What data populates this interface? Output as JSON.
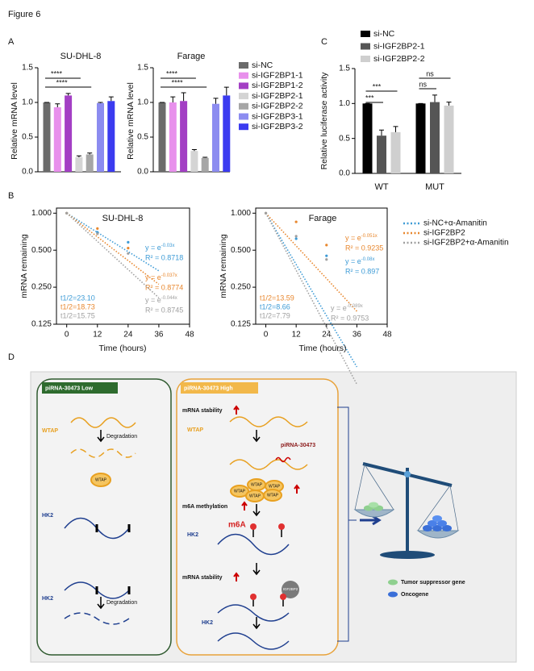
{
  "figure_title": "Figure 6",
  "chart_data": [
    {
      "type": "bar",
      "label": "A",
      "title": "SU-DHL-8",
      "ylabel": "Relative mRNA level",
      "ylim": [
        0,
        1.5
      ],
      "yticks": [
        {
          "value": 0,
          "label": "0.0"
        },
        0.5,
        {
          "value": 1,
          "label": "1.0"
        },
        1.5
      ],
      "categories": [
        null
      ],
      "series": [
        {
          "name": "si-NC",
          "color": "#6b6b6b",
          "values": [
            1.0
          ],
          "errors": [
            0.0
          ]
        },
        {
          "name": "si-IGF2BP1-1",
          "color": "#e890ec",
          "values": [
            0.93
          ],
          "errors": [
            0.05
          ]
        },
        {
          "name": "si-IGF2BP1-2",
          "color": "#a33fc4",
          "values": [
            1.1
          ],
          "errors": [
            0.03
          ]
        },
        {
          "name": "si-IGF2BP2-1",
          "color": "#d4d4d4",
          "values": [
            0.21
          ],
          "errors": [
            0.02
          ]
        },
        {
          "name": "si-IGF2BP2-2",
          "color": "#a6a6a6",
          "values": [
            0.25
          ],
          "errors": [
            0.02
          ]
        },
        {
          "name": "si-IGF2BP3-1",
          "color": "#8c8cf0",
          "values": [
            0.99
          ],
          "errors": [
            0.01
          ]
        },
        {
          "name": "si-IGF2BP3-2",
          "color": "#3b3bf0",
          "values": [
            1.02
          ],
          "errors": [
            0.06
          ]
        }
      ],
      "annotations": [
        "****",
        "****"
      ]
    },
    {
      "type": "bar",
      "title": "Farage",
      "ylabel": "Relative mRNA level",
      "ylim": [
        0,
        1.5
      ],
      "yticks": [
        {
          "value": 0,
          "label": "0.0"
        },
        0.5,
        {
          "value": 1,
          "label": "1.0"
        },
        1.5
      ],
      "categories": [
        null
      ],
      "series": [
        {
          "color": "#6b6b6b",
          "values": [
            1.0
          ],
          "errors": [
            0.0
          ]
        },
        {
          "color": "#e890ec",
          "values": [
            1.0
          ],
          "errors": [
            0.08
          ]
        },
        {
          "color": "#a33fc4",
          "values": [
            1.02
          ],
          "errors": [
            0.12
          ]
        },
        {
          "color": "#d4d4d4",
          "values": [
            0.3
          ],
          "errors": [
            0.02
          ]
        },
        {
          "color": "#a6a6a6",
          "values": [
            0.2
          ],
          "errors": [
            0.01
          ]
        },
        {
          "color": "#8c8cf0",
          "values": [
            0.98
          ],
          "errors": [
            0.08
          ]
        },
        {
          "color": "#3b3bf0",
          "values": [
            1.1
          ],
          "errors": [
            0.12
          ]
        }
      ],
      "annotations": [
        "****",
        "****"
      ]
    },
    {
      "type": "bar",
      "label": "C",
      "ylabel": "Relative luciferase activity",
      "ylim": [
        0,
        1.5
      ],
      "yticks": [
        {
          "value": 0,
          "label": "0.0"
        },
        0.5,
        {
          "value": 1,
          "label": "1.0"
        },
        1.5
      ],
      "categories": [
        "WT",
        "MUT"
      ],
      "series": [
        {
          "name": "si-NC",
          "color": "#000000",
          "values": [
            1.0,
            1.0
          ],
          "errors": [
            0.0,
            0.0
          ]
        },
        {
          "name": "si-IGF2BP2-1",
          "color": "#555555",
          "values": [
            0.54,
            1.02
          ],
          "errors": [
            0.08,
            0.1
          ]
        },
        {
          "name": "si-IGF2BP2-2",
          "color": "#cfcfcf",
          "values": [
            0.59,
            0.97
          ],
          "errors": [
            0.08,
            0.05
          ]
        }
      ],
      "annotations": [
        "***",
        "***",
        "ns",
        "ns"
      ]
    },
    {
      "type": "line",
      "label": "B",
      "title": "SU-DHL-8",
      "xlabel": "Time (hours)",
      "ylabel": "mRNA remaining",
      "yscale": "log",
      "ylim": [
        0.125,
        1.1
      ],
      "yticks": [
        0.125,
        {
          "value": 0.25,
          "label": "0.250"
        },
        {
          "value": 0.5,
          "label": "0.500"
        },
        {
          "value": 1,
          "label": "1.000"
        }
      ],
      "xlim": [
        -4,
        48
      ],
      "xticks": [
        0,
        12,
        24,
        36,
        48
      ],
      "x": [
        0,
        12,
        24
      ],
      "equation_prefix": "y = e",
      "series": [
        {
          "name": "si-NC+α-Amanitin",
          "color": "#3d9bd6",
          "values": [
            1.0,
            0.7,
            0.58
          ],
          "fit": {
            "value": -0.03,
            "label": "-0.03x"
          },
          "r2": "R² = 0.8718",
          "half_life": "t1/2=23.10"
        },
        {
          "name": "si-IGF2BP2",
          "color": "#e8872e",
          "values": [
            1.0,
            0.75,
            0.52
          ],
          "fit": {
            "value": -0.037,
            "label": "-0.037x"
          },
          "r2": "R² = 0.8774",
          "half_life": "t1/2=18.73"
        },
        {
          "name": "si-IGF2BP2+α-Amanitin",
          "color": "#a0a0a0",
          "values": [
            1.0,
            0.68,
            0.47
          ],
          "fit": {
            "value": -0.044,
            "label": "-0.044x"
          },
          "r2": "R² = 0.8745",
          "half_life": "t1/2=15.75"
        }
      ]
    },
    {
      "type": "line",
      "title": "Farage",
      "xlabel": "Time (hours)",
      "ylabel": "mRNA remaining",
      "yscale": "log",
      "ylim": [
        0.125,
        1.1
      ],
      "yticks": [
        0.125,
        {
          "value": 0.25,
          "label": "0.250"
        },
        {
          "value": 0.5,
          "label": "0.500"
        },
        {
          "value": 1,
          "label": "1.000"
        }
      ],
      "xlim": [
        -4,
        48
      ],
      "xticks": [
        0,
        12,
        24,
        36,
        48
      ],
      "x": [
        0,
        12,
        24
      ],
      "equation_prefix": "y = e",
      "series": [
        {
          "color": "#3d9bd6",
          "values": [
            1.0,
            0.62,
            0.45
          ],
          "fit": {
            "value": -0.08,
            "label": "-0.08x"
          },
          "r2": "R² = 0.897",
          "half_life": "t1/2=8.66"
        },
        {
          "color": "#e8872e",
          "values": [
            1.0,
            0.85,
            0.55
          ],
          "fit": {
            "value": -0.051,
            "label": "-0.051x"
          },
          "r2": "R² = 0.9235",
          "half_life": "t1/2=13.59"
        },
        {
          "color": "#a0a0a0",
          "values": [
            1.0,
            0.65,
            0.42
          ],
          "fit": {
            "value": -0.089,
            "label": "-0.089x"
          },
          "r2": "R² = 0.9753",
          "half_life": "t1/2=7.79"
        }
      ]
    }
  ],
  "diagram": {
    "label": "D",
    "left": {
      "title": "piRNA-30473 Low",
      "gene1": "WTAP",
      "degradation1": "Degradation",
      "protein": "WTAP",
      "gene2": "HK2",
      "gene3": "HK2",
      "degradation2": "Degradation"
    },
    "right": {
      "title": "piRNA-30473 High",
      "stability1": "mRNA stability",
      "gene1": "WTAP",
      "pirna": "piRNA-30473",
      "complex": [
        "WTAP",
        "WTAP",
        "WTAP",
        "WTAP",
        "WTAP"
      ],
      "methylation": "m6A methylation",
      "m6a": "m6A",
      "gene2": "HK2",
      "stability2": "mRNA stability",
      "reader": "IGF2BP2",
      "gene3": "HK2"
    },
    "legend": [
      "Tumor suppressor gene",
      "Oncogene"
    ]
  }
}
